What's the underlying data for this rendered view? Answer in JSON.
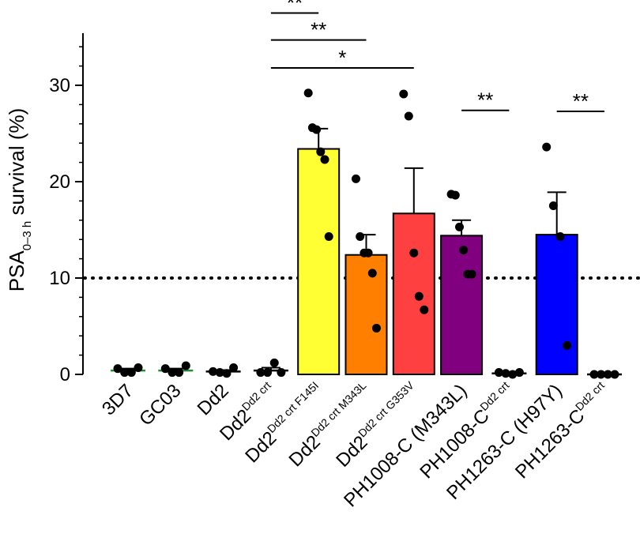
{
  "chart_data": {
    "type": "bar",
    "ylabel": {
      "main": "PSA",
      "sub": "0–3 h",
      "rest": " survival (%)"
    },
    "ylim": [
      0,
      35
    ],
    "yticks": [
      0,
      10,
      20,
      30
    ],
    "threshold": 10,
    "categories": [
      {
        "base": "3D7",
        "sup": "",
        "name": "3D7",
        "mean": 0.4,
        "sem": 0.2,
        "color": "#ffffff",
        "bar_edge": "#1f8f3a",
        "points": [
          0.6,
          0.2,
          0.2,
          0.7
        ]
      },
      {
        "base": "GC03",
        "sup": "",
        "name": "GC03",
        "mean": 0.4,
        "sem": 0.2,
        "color": "#ffffff",
        "bar_edge": "#1f8f3a",
        "points": [
          0.6,
          0.2,
          0.2,
          0.9
        ]
      },
      {
        "base": "Dd2",
        "sup": "",
        "name": "Dd2",
        "mean": 0.3,
        "sem": 0.15,
        "color": "#ffffff",
        "bar_edge": "#000000",
        "points": [
          0.3,
          0.2,
          0.1,
          0.7
        ]
      },
      {
        "base": "Dd2",
        "sup": "Dd2 crt",
        "name": "Dd2 Dd2 crt",
        "mean": 0.4,
        "sem": 0.3,
        "color": "#ffffff",
        "bar_edge": "#000000",
        "points": [
          0.2,
          0.2,
          1.2,
          0.2
        ]
      },
      {
        "base": "Dd2",
        "sup": "Dd2 crt F145I",
        "name": "Dd2 Dd2 crt F145I",
        "mean": 23.4,
        "sem": 2.1,
        "color": "#ffff33",
        "bar_edge": "#000000",
        "points": [
          29.2,
          25.6,
          25.4,
          23.1,
          22.3,
          14.3
        ]
      },
      {
        "base": "Dd2",
        "sup": "Dd2 crt M343L",
        "name": "Dd2 Dd2 crt M343L",
        "mean": 12.4,
        "sem": 2.1,
        "color": "#ff8000",
        "bar_edge": "#000000",
        "points": [
          20.3,
          14.3,
          12.6,
          12.6,
          10.5,
          4.8
        ]
      },
      {
        "base": "Dd2",
        "sup": "Dd2 crt G353V",
        "name": "Dd2 Dd2 crt G353V",
        "mean": 16.7,
        "sem": 4.7,
        "color": "#ff4040",
        "bar_edge": "#000000",
        "points": [
          29.1,
          26.8,
          12.6,
          8.1,
          6.7
        ]
      },
      {
        "base": "PH1008-C (M343L)",
        "sup": "",
        "name": "PH1008-C (M343L)",
        "mean": 14.4,
        "sem": 1.6,
        "color": "#800080",
        "bar_edge": "#000000",
        "points": [
          18.7,
          18.6,
          15.3,
          12.9,
          10.4,
          10.4
        ]
      },
      {
        "base": "PH1008-C",
        "sup": "Dd2 crt",
        "name": "PH1008-C Dd2 crt",
        "mean": 0.1,
        "sem": 0.05,
        "color": "#ffffff",
        "bar_edge": "#000000",
        "points": [
          0.2,
          0.1,
          0.0,
          0.2
        ]
      },
      {
        "base": "PH1263-C (H97Y)",
        "sup": "",
        "name": "PH1263-C (H97Y)",
        "mean": 14.5,
        "sem": 4.4,
        "color": "#0000ff",
        "bar_edge": "#000000",
        "points": [
          23.6,
          17.5,
          14.3,
          3.0
        ]
      },
      {
        "base": "PH1263-C",
        "sup": "Dd2 crt",
        "name": "PH1263-C Dd2 crt",
        "mean": 0.0,
        "sem": 0.0,
        "color": "#ffffff",
        "bar_edge": "#000000",
        "points": [
          0.0,
          0.0,
          0.0,
          0.0
        ]
      }
    ],
    "significance": [
      {
        "from": 3,
        "to": 4,
        "label": "**",
        "level": 37.5
      },
      {
        "from": 3,
        "to": 5,
        "label": "**",
        "level": 34.7
      },
      {
        "from": 3,
        "to": 6,
        "label": "*",
        "level": 31.8
      },
      {
        "from": 7,
        "to": 8,
        "label": "**",
        "level": 27.4
      },
      {
        "from": 9,
        "to": 10,
        "label": "**",
        "level": 27.3
      }
    ]
  }
}
